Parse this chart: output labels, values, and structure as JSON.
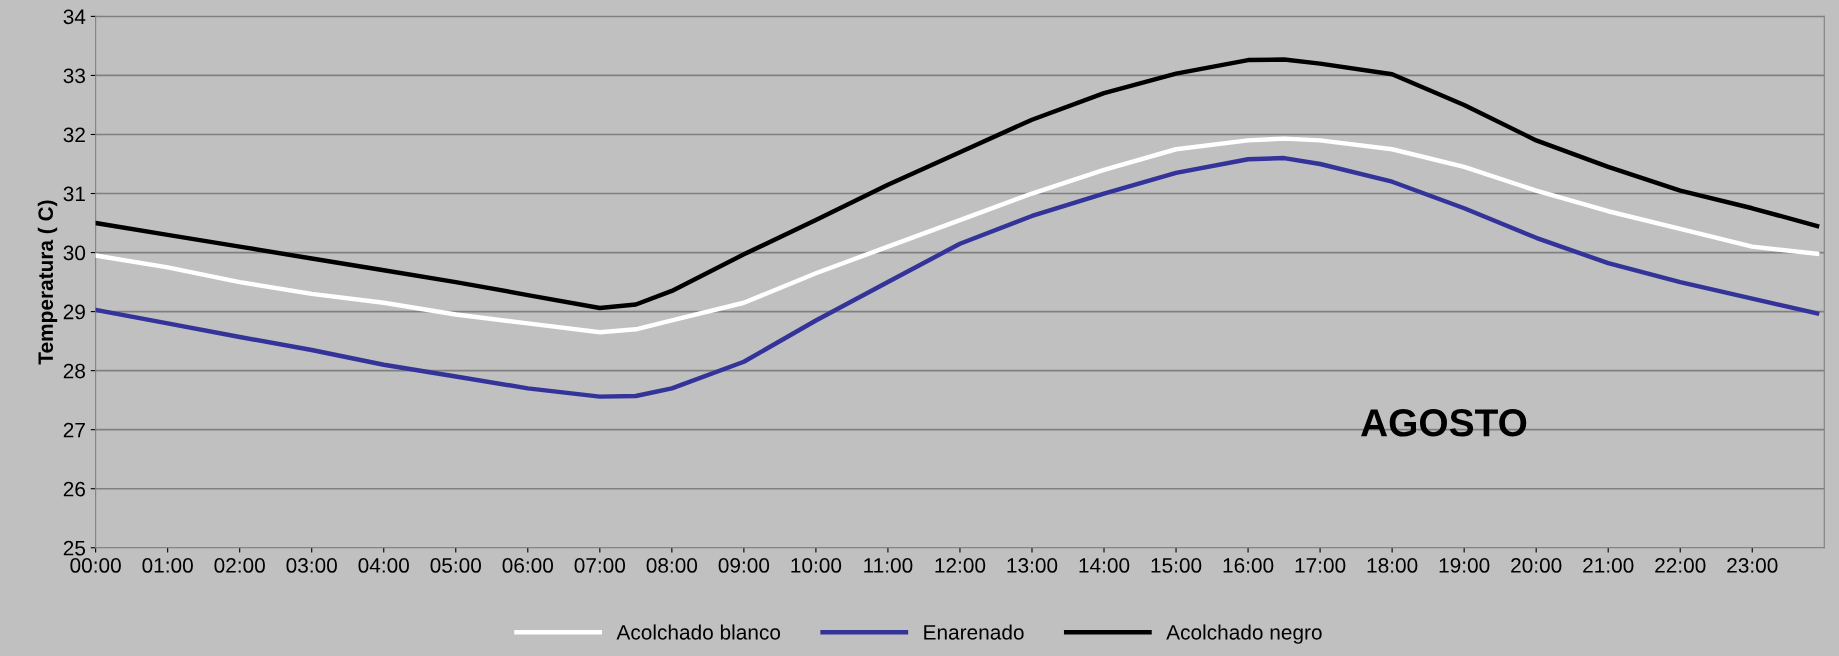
{
  "chart_data": {
    "type": "line",
    "ylabel": "Temperatura ( C)",
    "annotations": [
      "AGOSTO"
    ],
    "x": [
      0,
      1,
      2,
      3,
      4,
      5,
      6,
      7,
      7.5,
      8,
      9,
      10,
      11,
      12,
      13,
      14,
      15,
      16,
      16.5,
      17,
      18,
      19,
      20,
      21,
      22,
      23,
      23.9
    ],
    "series": [
      {
        "name": "Acolchado blanco",
        "color": "#ffffff",
        "values": [
          29.95,
          29.75,
          29.5,
          29.3,
          29.15,
          28.95,
          28.8,
          28.65,
          28.7,
          28.85,
          29.15,
          29.65,
          30.1,
          30.55,
          31.0,
          31.4,
          31.75,
          31.9,
          31.93,
          31.9,
          31.75,
          31.45,
          31.05,
          30.7,
          30.4,
          30.1,
          29.98
        ]
      },
      {
        "name": "Enarenado",
        "color": "#333399",
        "values": [
          29.03,
          28.8,
          28.57,
          28.35,
          28.1,
          27.9,
          27.7,
          27.56,
          27.57,
          27.7,
          28.15,
          28.85,
          29.5,
          30.15,
          30.62,
          31.0,
          31.35,
          31.58,
          31.6,
          31.5,
          31.2,
          30.75,
          30.25,
          29.82,
          29.5,
          29.22,
          28.97
        ]
      },
      {
        "name": "Acolchado negro",
        "color": "#000000",
        "values": [
          30.5,
          30.3,
          30.1,
          29.9,
          29.7,
          29.5,
          29.28,
          29.06,
          29.12,
          29.35,
          29.97,
          30.55,
          31.15,
          31.7,
          32.25,
          32.7,
          33.03,
          33.26,
          33.27,
          33.2,
          33.02,
          32.5,
          31.9,
          31.45,
          31.05,
          30.75,
          30.45
        ]
      }
    ],
    "xlim": [
      0,
      24
    ],
    "xticks": [
      {
        "value": 0,
        "label": "00:00"
      },
      {
        "value": 1,
        "label": "01:00"
      },
      {
        "value": 2,
        "label": "02:00"
      },
      {
        "value": 3,
        "label": "03:00"
      },
      {
        "value": 4,
        "label": "04:00"
      },
      {
        "value": 5,
        "label": "05:00"
      },
      {
        "value": 6,
        "label": "06:00"
      },
      {
        "value": 7,
        "label": "07:00"
      },
      {
        "value": 8,
        "label": "08:00"
      },
      {
        "value": 9,
        "label": "09:00"
      },
      {
        "value": 10,
        "label": "10:00"
      },
      {
        "value": 11,
        "label": "11:00"
      },
      {
        "value": 12,
        "label": "12:00"
      },
      {
        "value": 13,
        "label": "13:00"
      },
      {
        "value": 14,
        "label": "14:00"
      },
      {
        "value": 15,
        "label": "15:00"
      },
      {
        "value": 16,
        "label": "16:00"
      },
      {
        "value": 17,
        "label": "17:00"
      },
      {
        "value": 18,
        "label": "18:00"
      },
      {
        "value": 19,
        "label": "19:00"
      },
      {
        "value": 20,
        "label": "20:00"
      },
      {
        "value": 21,
        "label": "21:00"
      },
      {
        "value": 22,
        "label": "22:00"
      },
      {
        "value": 23,
        "label": "23:00"
      }
    ],
    "ylim": [
      25,
      34
    ],
    "yticks": [
      25,
      26,
      27,
      28,
      29,
      30,
      31,
      32,
      33,
      34
    ],
    "grid": "y",
    "legend": "bottom",
    "marker": "none",
    "line_style": "solid"
  }
}
